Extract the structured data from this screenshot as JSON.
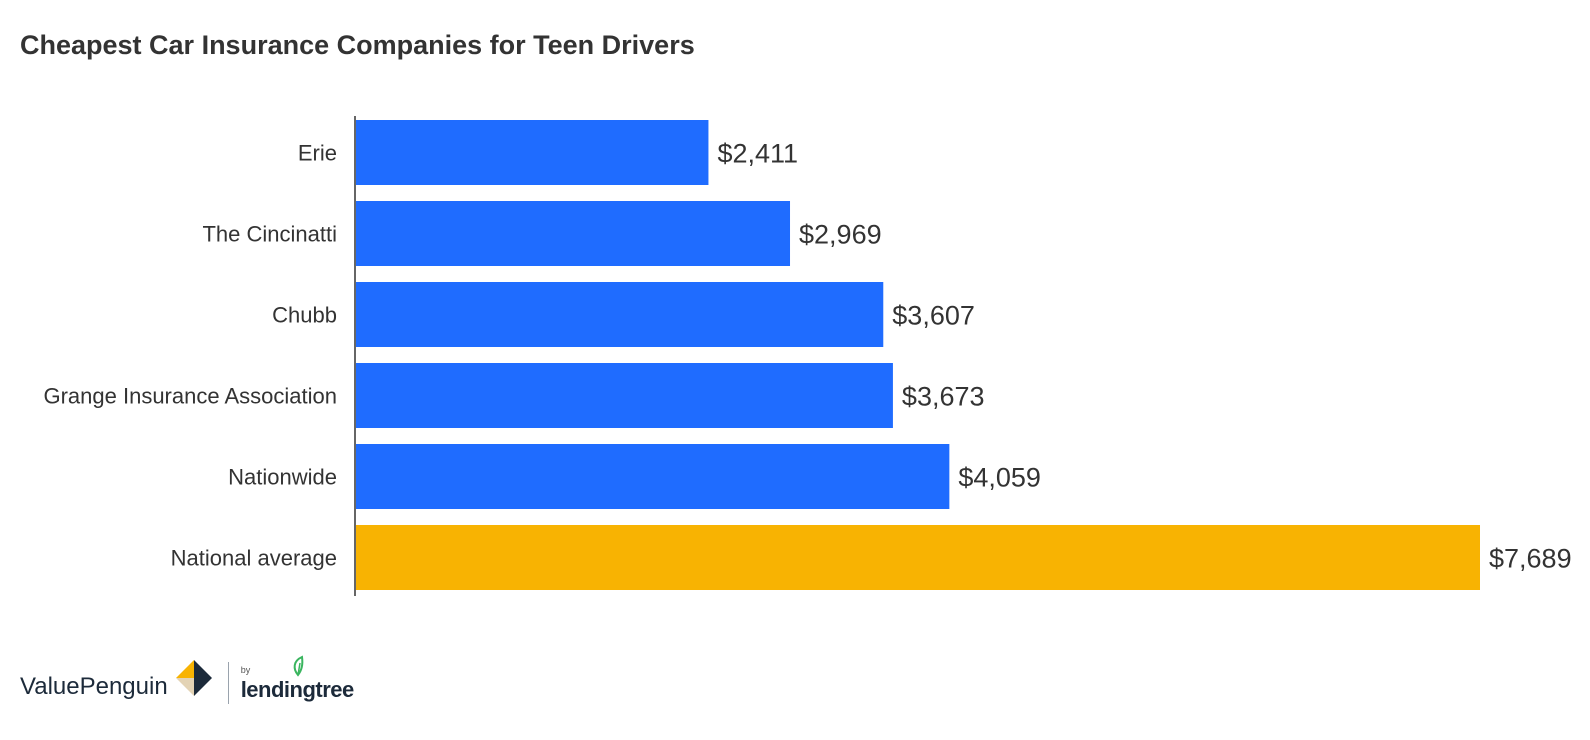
{
  "chart_data": {
    "type": "bar",
    "orientation": "horizontal",
    "title": "Cheapest Car Insurance Companies for Teen Drivers",
    "xlabel": "",
    "ylabel": "",
    "categories": [
      "Erie",
      "The Cincinatti",
      "Chubb",
      "Grange Insurance Association",
      "Nationwide",
      "National average"
    ],
    "values": [
      2411,
      2969,
      3607,
      3673,
      4059,
      7689
    ],
    "value_labels": [
      "$2,411",
      "$2,969",
      "$3,607",
      "$3,673",
      "$4,059",
      "$7,689"
    ],
    "bar_colors": [
      "#1f6cff",
      "#1f6cff",
      "#1f6cff",
      "#1f6cff",
      "#1f6cff",
      "#f8b302"
    ],
    "xlim": [
      0,
      7689
    ],
    "grid": false,
    "legend": "none"
  },
  "branding": {
    "brand_name": "ValuePenguin",
    "by_label": "by",
    "partner_name": "lendingtree",
    "mark_colors": {
      "dark": "#1c2a3a",
      "gold": "#f8b302",
      "tan": "#e3d3b5"
    },
    "leaf_color": "#3ab55f"
  }
}
